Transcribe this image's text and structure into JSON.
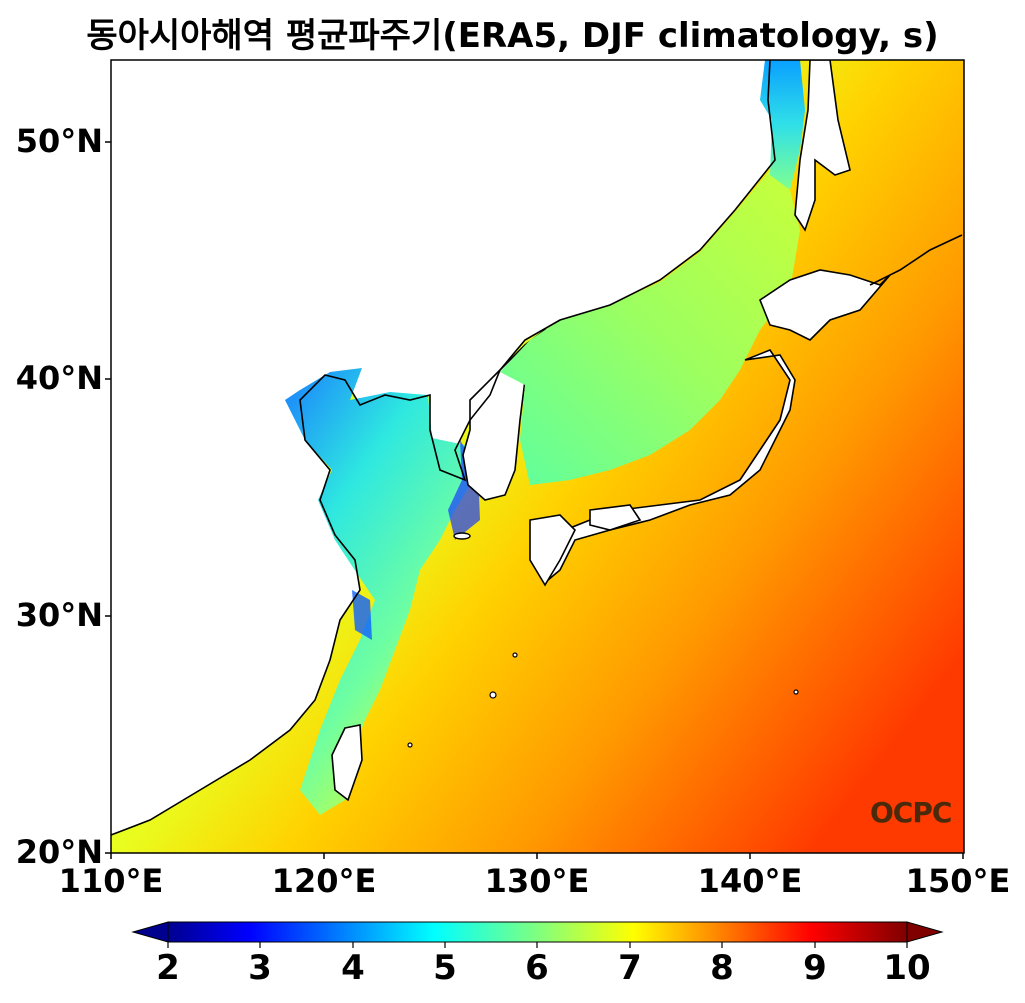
{
  "title": "동아시아해역 평균파주기(ERA5, DJF climatology, s)",
  "map": {
    "lon_range": [
      110,
      150
    ],
    "lat_range": [
      20,
      53.5
    ],
    "y_ticks": [
      "50°N",
      "40°N",
      "30°N",
      "20°N"
    ],
    "x_ticks": [
      "110°E",
      "120°E",
      "130°E",
      "140°E",
      "150°E"
    ]
  },
  "colorbar": {
    "ticks": [
      "2",
      "3",
      "4",
      "5",
      "6",
      "7",
      "8",
      "9",
      "10"
    ],
    "range": [
      2,
      10
    ],
    "colormap": "jet"
  },
  "logo": "OCPC",
  "colors": {
    "low": "#0000b0",
    "mid": "#4dffb0",
    "high": "#ff2a00",
    "coast": "#000000"
  }
}
